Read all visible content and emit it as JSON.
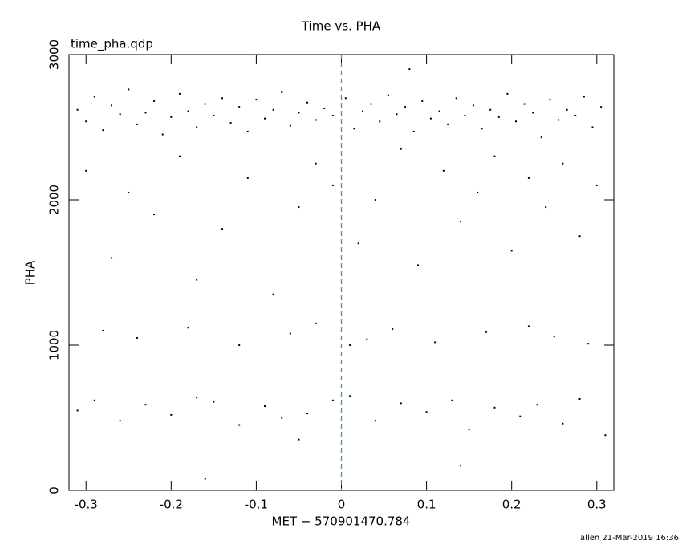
{
  "chart_data": {
    "type": "scatter",
    "title": "Time vs. PHA",
    "subtitle": "time_pha.qdp",
    "x_label": "MET − 570901470.784",
    "y_label": "PHA",
    "footer": "allen 21-Mar-2019 16:36",
    "color": "#000000",
    "vline": 0,
    "vline_color": "#2aa198",
    "xlim": [
      -0.32,
      0.32
    ],
    "ylim": [
      0,
      3000
    ],
    "xticks": [
      -0.3,
      -0.2,
      -0.1,
      0,
      0.1,
      0.2,
      0.3
    ],
    "yticks": [
      0,
      1000,
      2000,
      3000
    ],
    "x": [
      -0.31,
      -0.3,
      -0.29,
      -0.28,
      -0.27,
      -0.26,
      -0.25,
      -0.24,
      -0.23,
      -0.22,
      -0.21,
      -0.2,
      -0.19,
      -0.18,
      -0.17,
      -0.16,
      -0.15,
      -0.14,
      -0.13,
      -0.12,
      -0.11,
      -0.1,
      -0.09,
      -0.08,
      -0.07,
      -0.06,
      -0.05,
      -0.04,
      -0.03,
      -0.02,
      -0.01,
      0.005,
      0.015,
      0.025,
      0.035,
      0.045,
      0.055,
      0.065,
      0.075,
      0.085,
      0.095,
      0.105,
      0.115,
      0.125,
      0.135,
      0.145,
      0.155,
      0.165,
      0.175,
      0.185,
      0.195,
      0.205,
      0.215,
      0.225,
      0.235,
      0.245,
      0.255,
      0.265,
      0.275,
      0.285,
      0.295,
      0.305,
      -0.3,
      -0.27,
      -0.25,
      -0.22,
      -0.19,
      -0.17,
      -0.14,
      -0.11,
      -0.08,
      -0.05,
      -0.03,
      -0.01,
      0.02,
      0.04,
      0.07,
      0.09,
      0.12,
      0.14,
      0.16,
      0.18,
      0.2,
      0.22,
      0.24,
      0.26,
      0.28,
      0.3,
      -0.28,
      -0.24,
      -0.18,
      -0.12,
      -0.06,
      -0.03,
      0.01,
      0.03,
      0.06,
      0.11,
      0.17,
      0.22,
      0.25,
      0.29,
      -0.31,
      -0.29,
      -0.26,
      -0.23,
      -0.2,
      -0.17,
      -0.15,
      -0.12,
      -0.09,
      -0.07,
      -0.04,
      -0.01,
      0.01,
      0.04,
      0.07,
      0.1,
      0.13,
      0.15,
      0.18,
      0.21,
      0.23,
      0.26,
      0.28,
      0.31,
      -0.16,
      0.14,
      -0.05,
      0.08
    ],
    "y": [
      2620,
      2540,
      2710,
      2480,
      2650,
      2590,
      2760,
      2520,
      2600,
      2680,
      2450,
      2570,
      2730,
      2610,
      2500,
      2660,
      2580,
      2700,
      2530,
      2640,
      2470,
      2690,
      2560,
      2620,
      2740,
      2510,
      2600,
      2670,
      2550,
      2630,
      2580,
      2700,
      2490,
      2610,
      2660,
      2540,
      2720,
      2590,
      2640,
      2470,
      2680,
      2560,
      2610,
      2520,
      2700,
      2580,
      2650,
      2490,
      2620,
      2570,
      2730,
      2540,
      2660,
      2600,
      2430,
      2690,
      2550,
      2620,
      2580,
      2710,
      2500,
      2640,
      2200,
      1600,
      2050,
      1900,
      2300,
      1450,
      1800,
      2150,
      1350,
      1950,
      2250,
      2100,
      1700,
      2000,
      2350,
      1550,
      2200,
      1850,
      2050,
      2300,
      1650,
      2150,
      1950,
      2250,
      1750,
      2100,
      1100,
      1050,
      1120,
      1000,
      1080,
      1150,
      1000,
      1040,
      1110,
      1020,
      1090,
      1130,
      1060,
      1010,
      550,
      620,
      480,
      590,
      520,
      640,
      610,
      450,
      580,
      500,
      530,
      620,
      650,
      480,
      600,
      540,
      620,
      420,
      570,
      510,
      590,
      460,
      630,
      380,
      80,
      170,
      350,
      2900
    ]
  }
}
